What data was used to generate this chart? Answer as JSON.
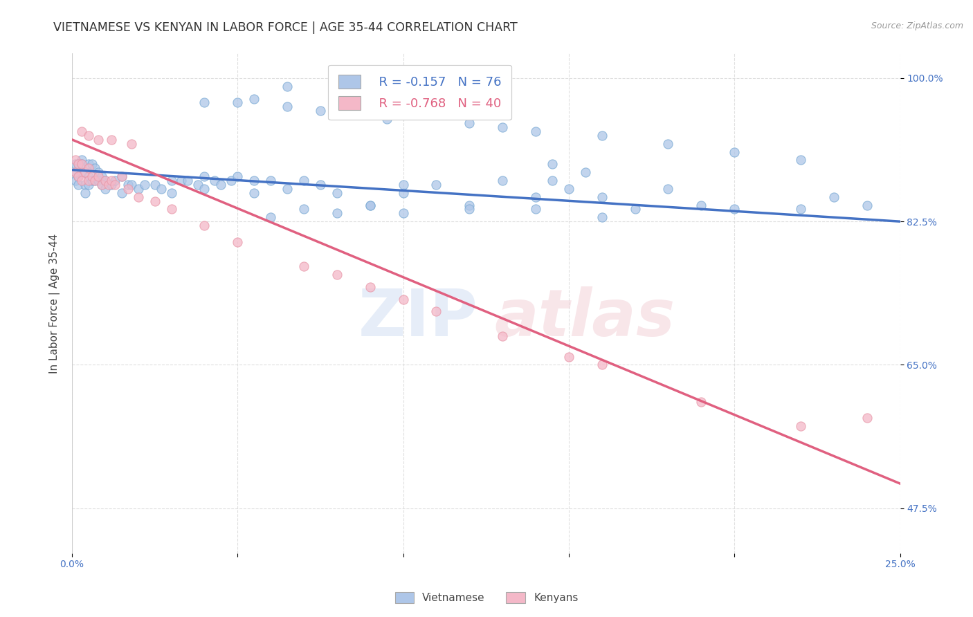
{
  "title": "VIETNAMESE VS KENYAN IN LABOR FORCE | AGE 35-44 CORRELATION CHART",
  "source": "Source: ZipAtlas.com",
  "ylabel_label": "In Labor Force | Age 35-44",
  "watermark_zip": "ZIP",
  "watermark_atlas": "atlas",
  "xlim": [
    0.0,
    0.25
  ],
  "ylim": [
    0.42,
    1.03
  ],
  "xticks": [
    0.0,
    0.05,
    0.1,
    0.15,
    0.2,
    0.25
  ],
  "xticklabels": [
    "0.0%",
    "",
    "",
    "",
    "",
    "25.0%"
  ],
  "ytick_positions": [
    1.0,
    0.825,
    0.65,
    0.475
  ],
  "yticklabels": [
    "100.0%",
    "82.5%",
    "65.0%",
    "47.5%"
  ],
  "blue_line_color": "#4472c4",
  "pink_line_color": "#e06080",
  "blue_scatter_color": "#aec6e8",
  "pink_scatter_color": "#f4b8c8",
  "blue_scatter_edge": "#7aaad4",
  "pink_scatter_edge": "#e897a8",
  "scatter_alpha": 0.75,
  "scatter_size": 90,
  "grid_color": "#d8d8d8",
  "grid_style": "--",
  "background_color": "#ffffff",
  "title_fontsize": 12.5,
  "axis_label_fontsize": 11,
  "tick_fontsize": 10,
  "source_fontsize": 9,
  "legend_R_blue": "-0.157",
  "legend_N_blue": "76",
  "legend_R_pink": "-0.768",
  "legend_N_pink": "40",
  "blue_scatter_x": [
    0.001,
    0.001,
    0.001,
    0.002,
    0.002,
    0.002,
    0.003,
    0.003,
    0.003,
    0.004,
    0.004,
    0.005,
    0.005,
    0.005,
    0.006,
    0.006,
    0.007,
    0.007,
    0.008,
    0.008,
    0.009,
    0.009,
    0.01,
    0.01,
    0.012,
    0.013,
    0.015,
    0.015,
    0.017,
    0.018,
    0.02,
    0.022,
    0.025,
    0.027,
    0.03,
    0.03,
    0.033,
    0.035,
    0.038,
    0.04,
    0.04,
    0.043,
    0.045,
    0.048,
    0.05,
    0.055,
    0.055,
    0.06,
    0.065,
    0.07,
    0.075,
    0.08,
    0.09,
    0.1,
    0.1,
    0.11,
    0.12,
    0.13,
    0.14,
    0.15,
    0.16,
    0.17,
    0.18,
    0.19,
    0.2,
    0.22,
    0.23,
    0.24,
    0.06,
    0.07,
    0.08,
    0.09,
    0.1,
    0.12,
    0.14,
    0.16
  ],
  "blue_scatter_y": [
    0.895,
    0.885,
    0.875,
    0.895,
    0.88,
    0.87,
    0.9,
    0.895,
    0.885,
    0.87,
    0.86,
    0.895,
    0.88,
    0.87,
    0.895,
    0.875,
    0.89,
    0.875,
    0.885,
    0.875,
    0.88,
    0.87,
    0.875,
    0.865,
    0.87,
    0.875,
    0.88,
    0.86,
    0.87,
    0.87,
    0.865,
    0.87,
    0.87,
    0.865,
    0.875,
    0.86,
    0.875,
    0.875,
    0.87,
    0.88,
    0.865,
    0.875,
    0.87,
    0.875,
    0.88,
    0.875,
    0.86,
    0.875,
    0.865,
    0.875,
    0.87,
    0.86,
    0.845,
    0.86,
    0.87,
    0.87,
    0.845,
    0.875,
    0.855,
    0.865,
    0.855,
    0.84,
    0.865,
    0.845,
    0.84,
    0.84,
    0.855,
    0.845,
    0.83,
    0.84,
    0.835,
    0.845,
    0.835,
    0.84,
    0.84,
    0.83
  ],
  "blue_scatter_x_high": [
    0.065,
    0.08,
    0.09,
    0.04,
    0.05,
    0.055,
    0.065,
    0.075,
    0.085,
    0.095,
    0.12,
    0.13,
    0.14,
    0.16,
    0.18,
    0.2,
    0.22,
    0.145,
    0.155,
    0.145
  ],
  "blue_scatter_y_high": [
    0.99,
    0.995,
    0.995,
    0.97,
    0.97,
    0.975,
    0.965,
    0.96,
    0.955,
    0.95,
    0.945,
    0.94,
    0.935,
    0.93,
    0.92,
    0.91,
    0.9,
    0.895,
    0.885,
    0.875
  ],
  "pink_scatter_x": [
    0.001,
    0.001,
    0.002,
    0.002,
    0.003,
    0.003,
    0.004,
    0.005,
    0.005,
    0.006,
    0.007,
    0.008,
    0.009,
    0.01,
    0.011,
    0.012,
    0.013,
    0.015,
    0.017,
    0.02,
    0.025,
    0.03,
    0.04,
    0.05,
    0.07,
    0.08,
    0.09,
    0.1,
    0.11,
    0.13,
    0.15,
    0.16,
    0.19,
    0.22,
    0.24,
    0.003,
    0.005,
    0.008,
    0.012,
    0.018
  ],
  "pink_scatter_y": [
    0.9,
    0.885,
    0.895,
    0.88,
    0.895,
    0.875,
    0.885,
    0.89,
    0.875,
    0.88,
    0.875,
    0.88,
    0.87,
    0.875,
    0.87,
    0.875,
    0.87,
    0.88,
    0.865,
    0.855,
    0.85,
    0.84,
    0.82,
    0.8,
    0.77,
    0.76,
    0.745,
    0.73,
    0.715,
    0.685,
    0.66,
    0.65,
    0.605,
    0.575,
    0.585,
    0.935,
    0.93,
    0.925,
    0.925,
    0.92
  ],
  "blue_trendline_x": [
    0.0,
    0.25
  ],
  "blue_trendline_y": [
    0.888,
    0.825
  ],
  "pink_trendline_x": [
    0.0,
    0.25
  ],
  "pink_trendline_y": [
    0.925,
    0.505
  ]
}
